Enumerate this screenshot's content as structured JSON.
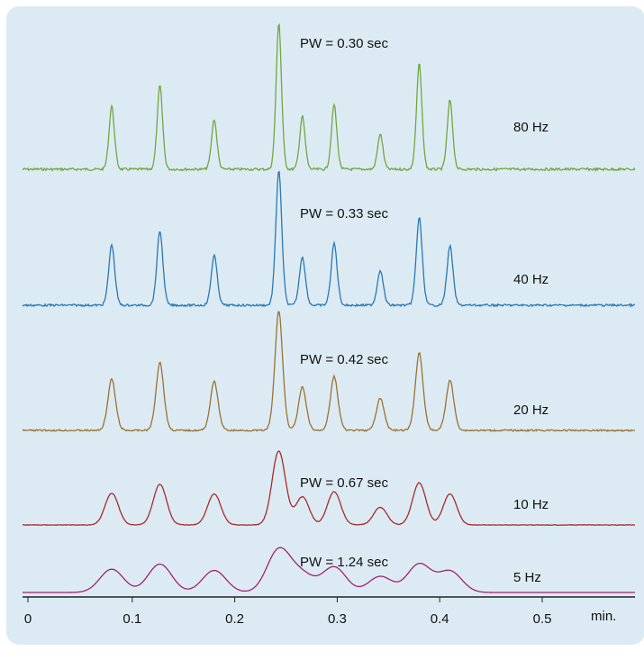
{
  "chart_data": {
    "type": "line",
    "xlabel": "min.",
    "x_ticks": [
      0,
      0.1,
      0.2,
      0.3,
      0.4,
      0.5
    ],
    "x_tick_labels": [
      "0",
      "0.1",
      "0.2",
      "0.3",
      "0.4",
      "0.5"
    ],
    "xlim": [
      0,
      0.59
    ],
    "grid": false,
    "legend": "none",
    "peak_times": [
      0.08,
      0.127,
      0.18,
      0.243,
      0.266,
      0.297,
      0.342,
      0.38,
      0.41
    ],
    "series": [
      {
        "name": "80 Hz",
        "label": "PW = 0.30 sec",
        "color": "#72a640",
        "peak_heights": [
          0.43,
          0.57,
          0.34,
          1.0,
          0.36,
          0.44,
          0.24,
          0.72,
          0.47
        ]
      },
      {
        "name": "40 Hz",
        "label": "PW = 0.33 sec",
        "color": "#2a78b4",
        "peak_heights": [
          0.45,
          0.55,
          0.37,
          1.0,
          0.36,
          0.46,
          0.26,
          0.65,
          0.44
        ]
      },
      {
        "name": "20 Hz",
        "label": "PW = 0.42 sec",
        "color": "#9a7230",
        "peak_heights": [
          0.43,
          0.57,
          0.41,
          1.0,
          0.36,
          0.45,
          0.27,
          0.65,
          0.42
        ]
      },
      {
        "name": "10 Hz",
        "label": "PW = 0.67 sec",
        "color": "#a82a2a",
        "peak_heights": [
          0.43,
          0.55,
          0.42,
          1.0,
          0.38,
          0.45,
          0.24,
          0.57,
          0.42
        ]
      },
      {
        "name": "5 Hz",
        "label": "PW = 1.24 sec",
        "color": "#a31f70",
        "peak_heights": [
          0.55,
          0.67,
          0.52,
          1.0,
          0.4,
          0.6,
          0.38,
          0.67,
          0.5
        ]
      }
    ]
  }
}
